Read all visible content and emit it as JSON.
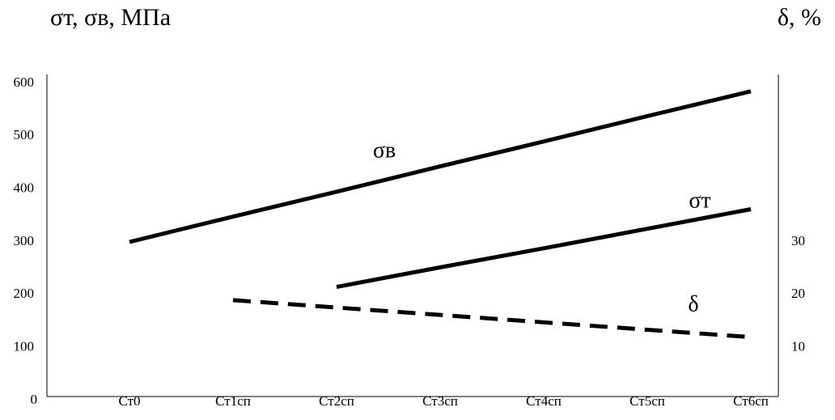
{
  "chart_data": {
    "type": "line",
    "ylabel": "σт, σв, МПа",
    "y2label": "δ, %",
    "categories": [
      "Ст0",
      "Ст1сп",
      "Ст2сп",
      "Ст3сп",
      "Ст4сп",
      "Ст5сп",
      "Ст6сп"
    ],
    "ylim": [
      0,
      600
    ],
    "yticks": [
      0,
      100,
      200,
      300,
      400,
      500,
      600
    ],
    "y2lim": [
      0,
      60
    ],
    "y2ticks": [
      10,
      20,
      30
    ],
    "series": [
      {
        "name": "σв",
        "color": "#000000",
        "dashed": false,
        "values": [
          300,
          348,
          395,
          443,
          490,
          538,
          585
        ]
      },
      {
        "name": "σт",
        "color": "#000000",
        "dashed": false,
        "values": [
          null,
          null,
          215,
          252,
          288,
          325,
          362
        ]
      },
      {
        "name": "δ",
        "color": "#000000",
        "dashed": true,
        "axis": "y2",
        "values": [
          null,
          19,
          17.6,
          16.2,
          14.8,
          13.4,
          12
        ]
      }
    ]
  }
}
